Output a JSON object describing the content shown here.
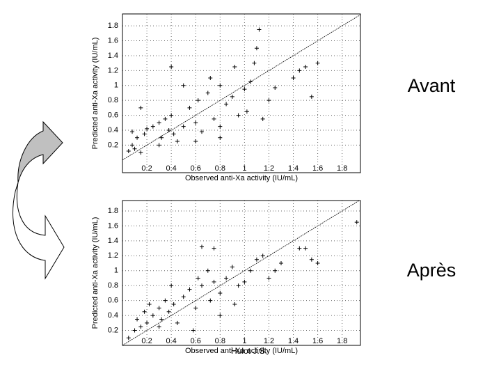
{
  "credit": "Hulot J.S.",
  "chart_data": [
    {
      "type": "scatter",
      "annotation": "Avant",
      "x_label": "Observed anti-Xa activity (IU/mL)",
      "y_label": "Predicted anti-Xa activity (IU/mL)",
      "xlim": [
        0,
        1.95
      ],
      "ylim": [
        -0.17,
        1.96
      ],
      "xticks": [
        0.2,
        0.4,
        0.6,
        0.8,
        1,
        1.2,
        1.4,
        1.6,
        1.8
      ],
      "yticks": [
        0.2,
        0.4,
        0.6,
        0.8,
        1,
        1.2,
        1.4,
        1.6,
        1.8
      ],
      "grid": true,
      "color": "#000000",
      "x": [
        0.05,
        0.08,
        0.1,
        0.12,
        0.15,
        0.08,
        0.18,
        0.2,
        0.15,
        0.25,
        0.3,
        0.32,
        0.35,
        0.38,
        0.4,
        0.42,
        0.45,
        0.5,
        0.55,
        0.6,
        0.62,
        0.65,
        0.7,
        0.72,
        0.75,
        0.8,
        0.8,
        0.85,
        0.9,
        0.92,
        0.95,
        1.0,
        1.02,
        1.05,
        1.08,
        1.1,
        1.12,
        1.15,
        1.2,
        1.25,
        1.4,
        1.45,
        1.5,
        1.55,
        1.6,
        0.5,
        0.4,
        0.8,
        0.6,
        0.3
      ],
      "y": [
        0.12,
        0.2,
        0.15,
        0.3,
        0.1,
        0.38,
        0.35,
        0.42,
        0.7,
        0.45,
        0.5,
        0.3,
        0.55,
        0.4,
        0.6,
        0.35,
        0.25,
        0.45,
        0.7,
        0.5,
        0.8,
        0.38,
        0.9,
        1.1,
        0.55,
        0.45,
        1.0,
        0.75,
        0.85,
        1.25,
        0.6,
        0.95,
        0.65,
        1.05,
        1.3,
        1.5,
        1.75,
        0.55,
        0.8,
        0.97,
        1.1,
        1.2,
        1.25,
        0.85,
        1.3,
        1.0,
        1.25,
        0.3,
        0.25,
        0.2
      ]
    },
    {
      "type": "scatter",
      "annotation": "Après",
      "x_label": "Observed anti-Xa activity (IU/mL)",
      "y_label": "Predicted anti-Xa activity (IU/mL)",
      "xlim": [
        0,
        1.95
      ],
      "ylim": [
        0,
        1.94
      ],
      "xticks": [
        0.2,
        0.4,
        0.6,
        0.8,
        1,
        1.2,
        1.4,
        1.6,
        1.8
      ],
      "yticks": [
        0.2,
        0.4,
        0.6,
        0.8,
        1,
        1.2,
        1.4,
        1.6,
        1.8
      ],
      "grid": true,
      "color": "#000000",
      "x": [
        0.05,
        0.1,
        0.12,
        0.15,
        0.18,
        0.2,
        0.22,
        0.25,
        0.3,
        0.32,
        0.35,
        0.38,
        0.4,
        0.42,
        0.45,
        0.5,
        0.55,
        0.6,
        0.62,
        0.65,
        0.7,
        0.72,
        0.75,
        0.8,
        0.85,
        0.9,
        0.92,
        0.95,
        1.0,
        1.05,
        1.1,
        1.15,
        1.2,
        1.25,
        1.3,
        1.45,
        1.5,
        1.55,
        1.6,
        1.92,
        0.65,
        0.75,
        0.58,
        0.8,
        0.3
      ],
      "y": [
        0.1,
        0.2,
        0.35,
        0.25,
        0.45,
        0.3,
        0.55,
        0.4,
        0.5,
        0.35,
        0.6,
        0.45,
        0.8,
        0.55,
        0.3,
        0.65,
        0.75,
        0.5,
        0.9,
        0.8,
        1.0,
        0.6,
        0.85,
        0.7,
        0.9,
        1.05,
        0.55,
        0.8,
        0.85,
        1.0,
        1.15,
        1.2,
        0.9,
        1.0,
        1.1,
        1.3,
        1.3,
        1.15,
        1.1,
        1.65,
        1.32,
        1.3,
        0.2,
        0.4,
        0.25
      ]
    }
  ]
}
